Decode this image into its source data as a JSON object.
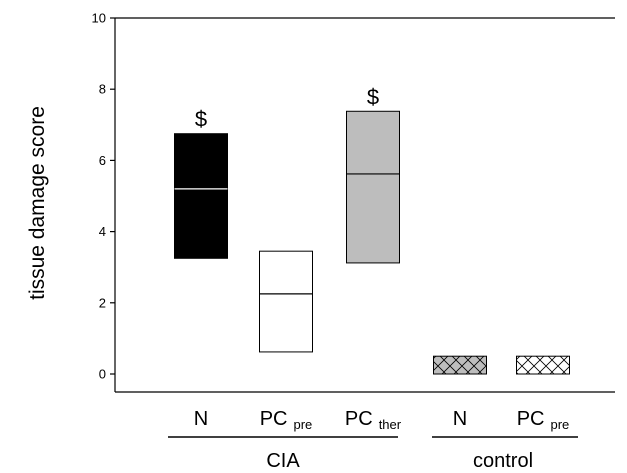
{
  "chart_data": {
    "type": "box",
    "title": "",
    "ylabel": "tissue damage score",
    "xlabel": "",
    "ylim": [
      0,
      10
    ],
    "yticks": [
      "0",
      "2",
      "4",
      "6",
      "8",
      "10"
    ],
    "grid": false,
    "categories": [
      {
        "main": "N",
        "sub": "",
        "group": "CIA",
        "fill": "#000000",
        "median_color": "#ffffff",
        "pattern": "solid",
        "q1": 3.25,
        "median": 5.2,
        "q3": 6.75,
        "annotation": "$"
      },
      {
        "main": "PC",
        "sub": "pre",
        "group": "CIA",
        "fill": "#ffffff",
        "median_color": "#000000",
        "pattern": "solid",
        "q1": 0.62,
        "median": 2.25,
        "q3": 3.45,
        "annotation": ""
      },
      {
        "main": "PC",
        "sub": "ther",
        "group": "CIA",
        "fill": "#bdbdbd",
        "median_color": "#000000",
        "pattern": "solid",
        "q1": 3.12,
        "median": 5.62,
        "q3": 7.38,
        "annotation": "$"
      },
      {
        "main": "N",
        "sub": "",
        "group": "control",
        "fill": "#bdbdbd",
        "median_color": "#000000",
        "pattern": "crosshatch",
        "q1": 0.0,
        "median": 0.0,
        "q3": 0.5,
        "annotation": ""
      },
      {
        "main": "PC",
        "sub": "pre",
        "group": "control",
        "fill": "#ffffff",
        "median_color": "#000000",
        "pattern": "crosshatch",
        "q1": 0.0,
        "median": 0.0,
        "q3": 0.5,
        "annotation": ""
      }
    ],
    "groups": [
      "CIA",
      "control"
    ]
  }
}
